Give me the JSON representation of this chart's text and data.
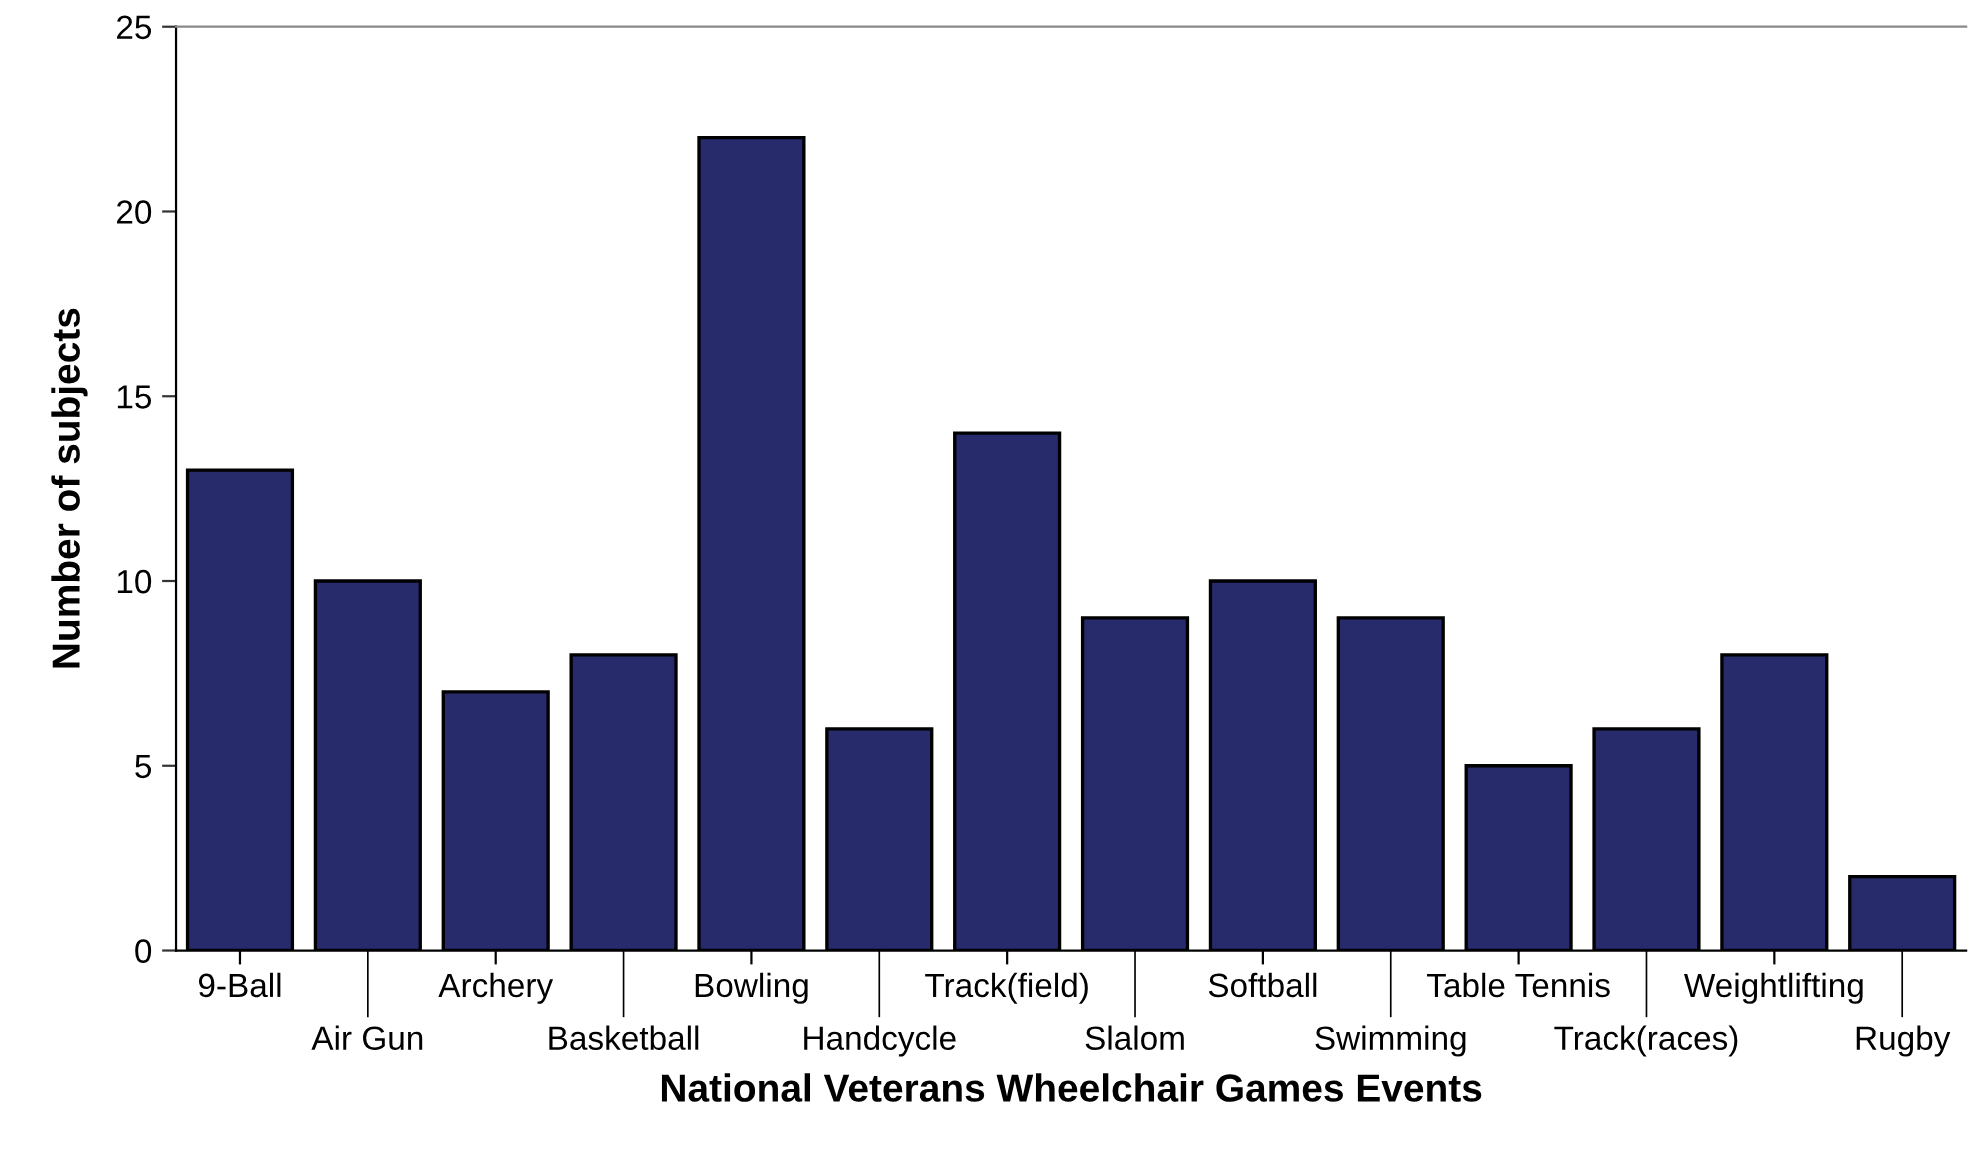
{
  "chart_data": {
    "type": "bar",
    "xlabel": "National Veterans Wheelchair Games Events",
    "ylabel": "Number of subjects",
    "categories": [
      "9-Ball",
      "Air Gun",
      "Archery",
      "Basketball",
      "Bowling",
      "Handcycle",
      "Track(field)",
      "Slalom",
      "Softball",
      "Swimming",
      "Table Tennis",
      "Track(races)",
      "Weightlifting",
      "Rugby"
    ],
    "values": [
      13,
      10,
      7,
      8,
      22,
      6,
      14,
      9,
      10,
      9,
      5,
      6,
      8,
      2
    ],
    "color": "#272a6b",
    "ylim": [
      0,
      25
    ],
    "yticks": [
      0,
      5,
      10,
      15,
      20,
      25
    ],
    "grid": false
  }
}
